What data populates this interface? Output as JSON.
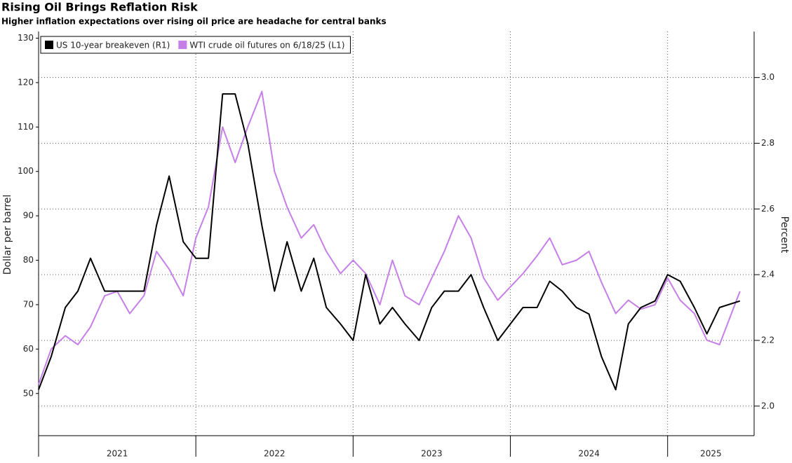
{
  "chart_data": {
    "type": "line",
    "title": "Rising Oil Brings Reflation Risk",
    "subtitle": "Higher inflation expectations over rising oil price are headache for central banks",
    "ylabel": "Dollar per barrel",
    "y2label": "Percent",
    "x": [
      2021,
      2021.08,
      2021.17,
      2021.25,
      2021.33,
      2021.42,
      2021.5,
      2021.58,
      2021.67,
      2021.75,
      2021.83,
      2021.92,
      2022,
      2022.08,
      2022.17,
      2022.25,
      2022.33,
      2022.42,
      2022.5,
      2022.58,
      2022.67,
      2022.75,
      2022.83,
      2022.92,
      2023,
      2023.08,
      2023.17,
      2023.25,
      2023.33,
      2023.42,
      2023.5,
      2023.58,
      2023.67,
      2023.75,
      2023.83,
      2023.92,
      2024,
      2024.08,
      2024.17,
      2024.25,
      2024.33,
      2024.42,
      2024.5,
      2024.58,
      2024.67,
      2024.75,
      2024.83,
      2024.92,
      2025,
      2025.08,
      2025.17,
      2025.25,
      2025.33,
      2025.46
    ],
    "series": [
      {
        "name": "US 10-year breakeven (R1)",
        "color": "#000000",
        "axis": "y2",
        "values": [
          2.05,
          2.15,
          2.3,
          2.35,
          2.45,
          2.35,
          2.35,
          2.35,
          2.35,
          2.55,
          2.7,
          2.5,
          2.45,
          2.45,
          2.95,
          2.95,
          2.8,
          2.55,
          2.35,
          2.5,
          2.35,
          2.45,
          2.3,
          2.25,
          2.2,
          2.4,
          2.25,
          2.3,
          2.25,
          2.2,
          2.3,
          2.35,
          2.35,
          2.4,
          2.3,
          2.2,
          2.25,
          2.3,
          2.3,
          2.38,
          2.35,
          2.3,
          2.28,
          2.15,
          2.05,
          2.25,
          2.3,
          2.32,
          2.4,
          2.38,
          2.3,
          2.22,
          2.3,
          2.32
        ]
      },
      {
        "name": "WTI crude oil futures on 6/18/25 (L1)",
        "color": "#c77fe8",
        "values": [
          52,
          60,
          63,
          61,
          65,
          72,
          73,
          68,
          72,
          82,
          78,
          72,
          85,
          92,
          110,
          102,
          110,
          118,
          100,
          92,
          85,
          88,
          82,
          77,
          80,
          77,
          70,
          80,
          72,
          70,
          76,
          82,
          90,
          85,
          76,
          71,
          74,
          77,
          81,
          85,
          79,
          80,
          82,
          75,
          68,
          71,
          69,
          70,
          76,
          71,
          68,
          62,
          61,
          73
        ]
      }
    ],
    "xlim": [
      2021,
      2025.55
    ],
    "xticks": [
      2021,
      2022,
      2023,
      2024,
      2025
    ],
    "ylim": [
      40.5,
      131.5
    ],
    "yticks": [
      50,
      60,
      70,
      80,
      90,
      100,
      110,
      120,
      130
    ],
    "y2lim": [
      1.91,
      3.14
    ],
    "y2ticks": [
      {
        "value": 2,
        "label": "2.0"
      },
      2.2,
      2.4,
      2.6,
      2.8,
      {
        "value": 3,
        "label": "3.0"
      }
    ],
    "grid": true,
    "legend": "top-left"
  }
}
